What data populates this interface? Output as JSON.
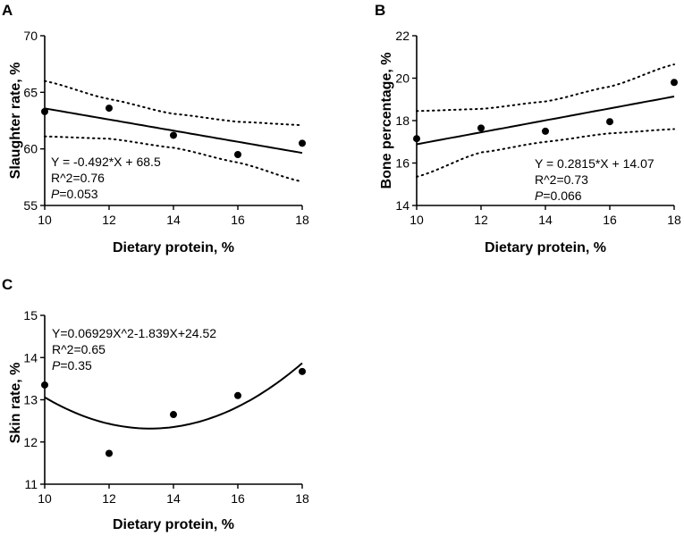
{
  "chart_data": [
    {
      "panel": "A",
      "type": "scatter",
      "xlabel": "Dietary protein, %",
      "ylabel": "Slaughter rate, %",
      "xlim": [
        10,
        18
      ],
      "ylim": [
        55,
        70
      ],
      "xticks": [
        10,
        12,
        14,
        16,
        18
      ],
      "yticks": [
        55,
        60,
        65,
        70
      ],
      "x": [
        10,
        12,
        14,
        16,
        18
      ],
      "y": [
        63.3,
        63.6,
        61.2,
        59.5,
        60.5
      ],
      "fit": {
        "kind": "linear",
        "coef": [
          68.5,
          -0.492
        ]
      },
      "ci": {
        "upper": [
          [
            10,
            66.0
          ],
          [
            12,
            64.4
          ],
          [
            14,
            63.1
          ],
          [
            16,
            62.4
          ],
          [
            18,
            62.1
          ]
        ],
        "lower": [
          [
            10,
            61.1
          ],
          [
            12,
            60.9
          ],
          [
            14,
            60.1
          ],
          [
            16,
            58.8
          ],
          [
            18,
            57.1
          ]
        ]
      },
      "annotations": {
        "equation": "Y = -0.492*X + 68.5",
        "r2": "R^2=0.76",
        "p_label": "P",
        "p_value": "=0.053"
      }
    },
    {
      "panel": "B",
      "type": "scatter",
      "xlabel": "Dietary protein, %",
      "ylabel": "Bone percentage, %",
      "xlim": [
        10,
        18
      ],
      "ylim": [
        14,
        22
      ],
      "xticks": [
        10,
        12,
        14,
        16,
        18
      ],
      "yticks": [
        14,
        16,
        18,
        20,
        22
      ],
      "x": [
        10,
        12,
        14,
        16,
        18
      ],
      "y": [
        17.15,
        17.65,
        17.5,
        17.95,
        19.8
      ],
      "fit": {
        "kind": "linear",
        "coef": [
          14.07,
          0.2815
        ]
      },
      "ci": {
        "upper": [
          [
            10,
            18.45
          ],
          [
            12,
            18.55
          ],
          [
            14,
            18.9
          ],
          [
            16,
            19.6
          ],
          [
            18,
            20.65
          ]
        ],
        "lower": [
          [
            10,
            15.35
          ],
          [
            12,
            16.5
          ],
          [
            14,
            17.0
          ],
          [
            16,
            17.4
          ],
          [
            18,
            17.6
          ]
        ]
      },
      "annotations": {
        "equation": "Y = 0.2815*X + 14.07",
        "r2": "R^2=0.73",
        "p_label": "P",
        "p_value": "=0.066"
      }
    },
    {
      "panel": "C",
      "type": "scatter",
      "xlabel": "Dietary protein, %",
      "ylabel": "Skin rate, %",
      "xlim": [
        10,
        18
      ],
      "ylim": [
        11,
        15
      ],
      "xticks": [
        10,
        12,
        14,
        16,
        18
      ],
      "yticks": [
        11,
        12,
        13,
        14,
        15
      ],
      "x": [
        10,
        12,
        14,
        16,
        18
      ],
      "y": [
        13.35,
        11.73,
        12.65,
        13.1,
        13.67
      ],
      "fit": {
        "kind": "quadratic",
        "coef": [
          24.52,
          -1.839,
          0.06929
        ]
      },
      "ci": null,
      "annotations": {
        "equation": "Y=0.06929X^2-1.839X+24.52",
        "r2": "R^2=0.65",
        "p_label": "P",
        "p_value": "=0.35"
      }
    }
  ]
}
